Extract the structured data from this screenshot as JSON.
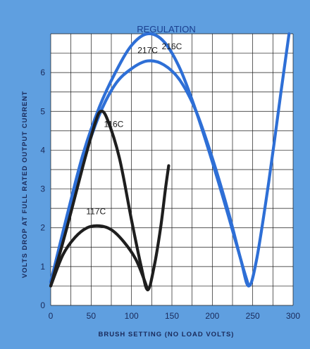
{
  "chart_data": {
    "type": "line",
    "title": "REGULATION",
    "xlabel": "BRUSH SETTING (NO LOAD VOLTS)",
    "ylabel": "VOLTS DROP AT FULL RATED OUTPUT CURRENT",
    "xlim": [
      0,
      300
    ],
    "ylim": [
      0,
      7
    ],
    "x_ticks": [
      "0",
      "50",
      "100",
      "150",
      "200",
      "250",
      "300"
    ],
    "y_ticks": [
      "0",
      "1",
      "2",
      "3",
      "4",
      "5",
      "6"
    ],
    "grid": true,
    "series": [
      {
        "name": "217C",
        "color": "#2e6fd6",
        "points": [
          [
            0,
            0.6
          ],
          [
            20,
            2.3
          ],
          [
            40,
            3.9
          ],
          [
            60,
            5.1
          ],
          [
            80,
            6.0
          ],
          [
            100,
            6.7
          ],
          [
            120,
            7.0
          ],
          [
            140,
            6.8
          ],
          [
            160,
            6.1
          ],
          [
            180,
            5.0
          ],
          [
            200,
            3.7
          ],
          [
            220,
            2.3
          ],
          [
            235,
            1.2
          ],
          [
            245,
            0.5
          ],
          [
            255,
            1.2
          ],
          [
            270,
            3.2
          ],
          [
            285,
            5.5
          ],
          [
            295,
            7.0
          ]
        ]
      },
      {
        "name": "216C",
        "color": "#2e6fd6",
        "points": [
          [
            0,
            0.6
          ],
          [
            20,
            2.2
          ],
          [
            40,
            3.7
          ],
          [
            60,
            4.9
          ],
          [
            80,
            5.7
          ],
          [
            100,
            6.1
          ],
          [
            120,
            6.3
          ],
          [
            140,
            6.2
          ],
          [
            160,
            5.8
          ],
          [
            180,
            5.0
          ],
          [
            200,
            3.8
          ],
          [
            220,
            2.4
          ],
          [
            235,
            1.2
          ],
          [
            245,
            0.5
          ]
        ]
      },
      {
        "name": "116C",
        "color": "#1e1e1e",
        "points": [
          [
            0,
            0.5
          ],
          [
            20,
            2.0
          ],
          [
            40,
            3.6
          ],
          [
            55,
            4.7
          ],
          [
            62,
            5.0
          ],
          [
            70,
            4.8
          ],
          [
            85,
            3.8
          ],
          [
            100,
            2.2
          ],
          [
            112,
            1.0
          ],
          [
            120,
            0.4
          ],
          [
            128,
            1.0
          ],
          [
            136,
            2.0
          ],
          [
            142,
            3.0
          ],
          [
            146,
            3.6
          ]
        ]
      },
      {
        "name": "117C",
        "color": "#1e1e1e",
        "points": [
          [
            0,
            0.5
          ],
          [
            15,
            1.3
          ],
          [
            30,
            1.75
          ],
          [
            45,
            2.0
          ],
          [
            60,
            2.05
          ],
          [
            75,
            1.95
          ],
          [
            90,
            1.65
          ],
          [
            105,
            1.2
          ],
          [
            115,
            0.7
          ],
          [
            120,
            0.4
          ]
        ]
      }
    ],
    "annotations": [
      {
        "text": "217C",
        "x": 120,
        "y": 6.5
      },
      {
        "text": "216C",
        "x": 150,
        "y": 6.6
      },
      {
        "text": "116C",
        "x": 78,
        "y": 4.6
      },
      {
        "text": "117C",
        "x": 56,
        "y": 2.35
      }
    ]
  }
}
